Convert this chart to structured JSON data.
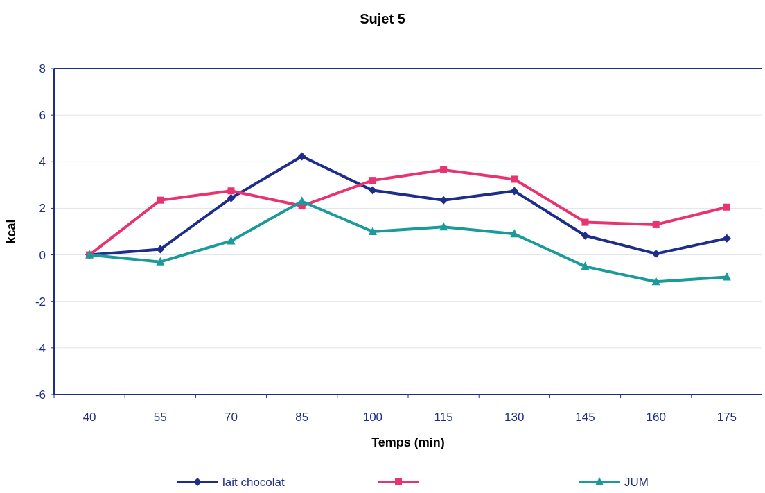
{
  "chart_data": {
    "type": "line",
    "title": "Sujet 5",
    "xlabel": "Temps (min)",
    "ylabel": "kcal",
    "categories": [
      "40",
      "55",
      "70",
      "85",
      "100",
      "115",
      "130",
      "145",
      "160",
      "175"
    ],
    "series": [
      {
        "name": "lait chocolat",
        "color": "#1f2d8a",
        "marker": "diamond",
        "values": [
          0,
          0.24,
          2.44,
          4.23,
          2.77,
          2.35,
          2.74,
          0.83,
          0.05,
          0.71
        ]
      },
      {
        "color": "#e8336e",
        "marker": "square",
        "values": [
          0,
          2.35,
          2.75,
          2.1,
          3.2,
          3.65,
          3.25,
          1.4,
          1.3,
          2.05
        ]
      },
      {
        "name": "JUM",
        "color": "#1a9a9a",
        "marker": "triangle",
        "values": [
          0,
          -0.3,
          0.6,
          2.3,
          1.0,
          1.2,
          0.9,
          -0.5,
          -1.15,
          -0.95
        ]
      }
    ],
    "ylim": [
      -6,
      8
    ],
    "yticks": [
      -6,
      -4,
      -2,
      0,
      2,
      4,
      6,
      8
    ],
    "grid": "y",
    "legend": "bottom"
  }
}
